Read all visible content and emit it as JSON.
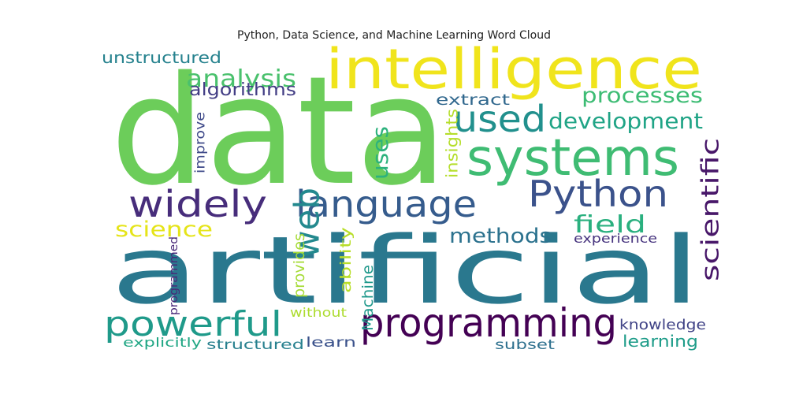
{
  "chart_data": {
    "type": "wordcloud",
    "title": "Python, Data Science, and Machine Learning Word Cloud",
    "background": "#ffffff",
    "colormap": "viridis",
    "words": [
      {
        "text": "data",
        "color": "#6ccd5a",
        "vertical": false
      },
      {
        "text": "artificial",
        "color": "#2a788e",
        "vertical": false
      },
      {
        "text": "intelligence",
        "color": "#f0e41c",
        "vertical": false
      },
      {
        "text": "systems",
        "color": "#3fbc73",
        "vertical": false
      },
      {
        "text": "programming",
        "color": "#440154",
        "vertical": false
      },
      {
        "text": "used",
        "color": "#21908d",
        "vertical": false
      },
      {
        "text": "Python",
        "color": "#3b528b",
        "vertical": false
      },
      {
        "text": "language",
        "color": "#365c8d",
        "vertical": false
      },
      {
        "text": "widely",
        "color": "#472d7b",
        "vertical": false
      },
      {
        "text": "powerful",
        "color": "#1f9a8a",
        "vertical": false
      },
      {
        "text": "web",
        "color": "#23898e",
        "vertical": true
      },
      {
        "text": "analysis",
        "color": "#4ac16d",
        "vertical": false
      },
      {
        "text": "processes",
        "color": "#3dbc74",
        "vertical": false
      },
      {
        "text": "development",
        "color": "#20a486",
        "vertical": false
      },
      {
        "text": "scientific",
        "color": "#481769",
        "vertical": true
      },
      {
        "text": "field",
        "color": "#2ab07f",
        "vertical": false
      },
      {
        "text": "methods",
        "color": "#2c728e",
        "vertical": false
      },
      {
        "text": "science",
        "color": "#e5e419",
        "vertical": false
      },
      {
        "text": "unstructured",
        "color": "#26828e",
        "vertical": false
      },
      {
        "text": "algorithms",
        "color": "#433e85",
        "vertical": false
      },
      {
        "text": "extract",
        "color": "#31688e",
        "vertical": false
      },
      {
        "text": "uses",
        "color": "#2db27d",
        "vertical": true
      },
      {
        "text": "insights",
        "color": "#b5de2b",
        "vertical": true
      },
      {
        "text": "improve",
        "color": "#3e4989",
        "vertical": true
      },
      {
        "text": "experience",
        "color": "#46337e",
        "vertical": false
      },
      {
        "text": "provides",
        "color": "#a5db36",
        "vertical": true
      },
      {
        "text": "ability",
        "color": "#b8de29",
        "vertical": true
      },
      {
        "text": "Machine",
        "color": "#1f988b",
        "vertical": true
      },
      {
        "text": "programmed",
        "color": "#482878",
        "vertical": true
      },
      {
        "text": "knowledge",
        "color": "#414487",
        "vertical": false
      },
      {
        "text": "without",
        "color": "#addc30",
        "vertical": false
      },
      {
        "text": "structured",
        "color": "#27808e",
        "vertical": false
      },
      {
        "text": "learn",
        "color": "#3b528b",
        "vertical": false
      },
      {
        "text": "subset",
        "color": "#2d708e",
        "vertical": false
      },
      {
        "text": "learning",
        "color": "#1e9c89",
        "vertical": false
      },
      {
        "text": "explicitly",
        "color": "#22a785",
        "vertical": false
      }
    ]
  }
}
